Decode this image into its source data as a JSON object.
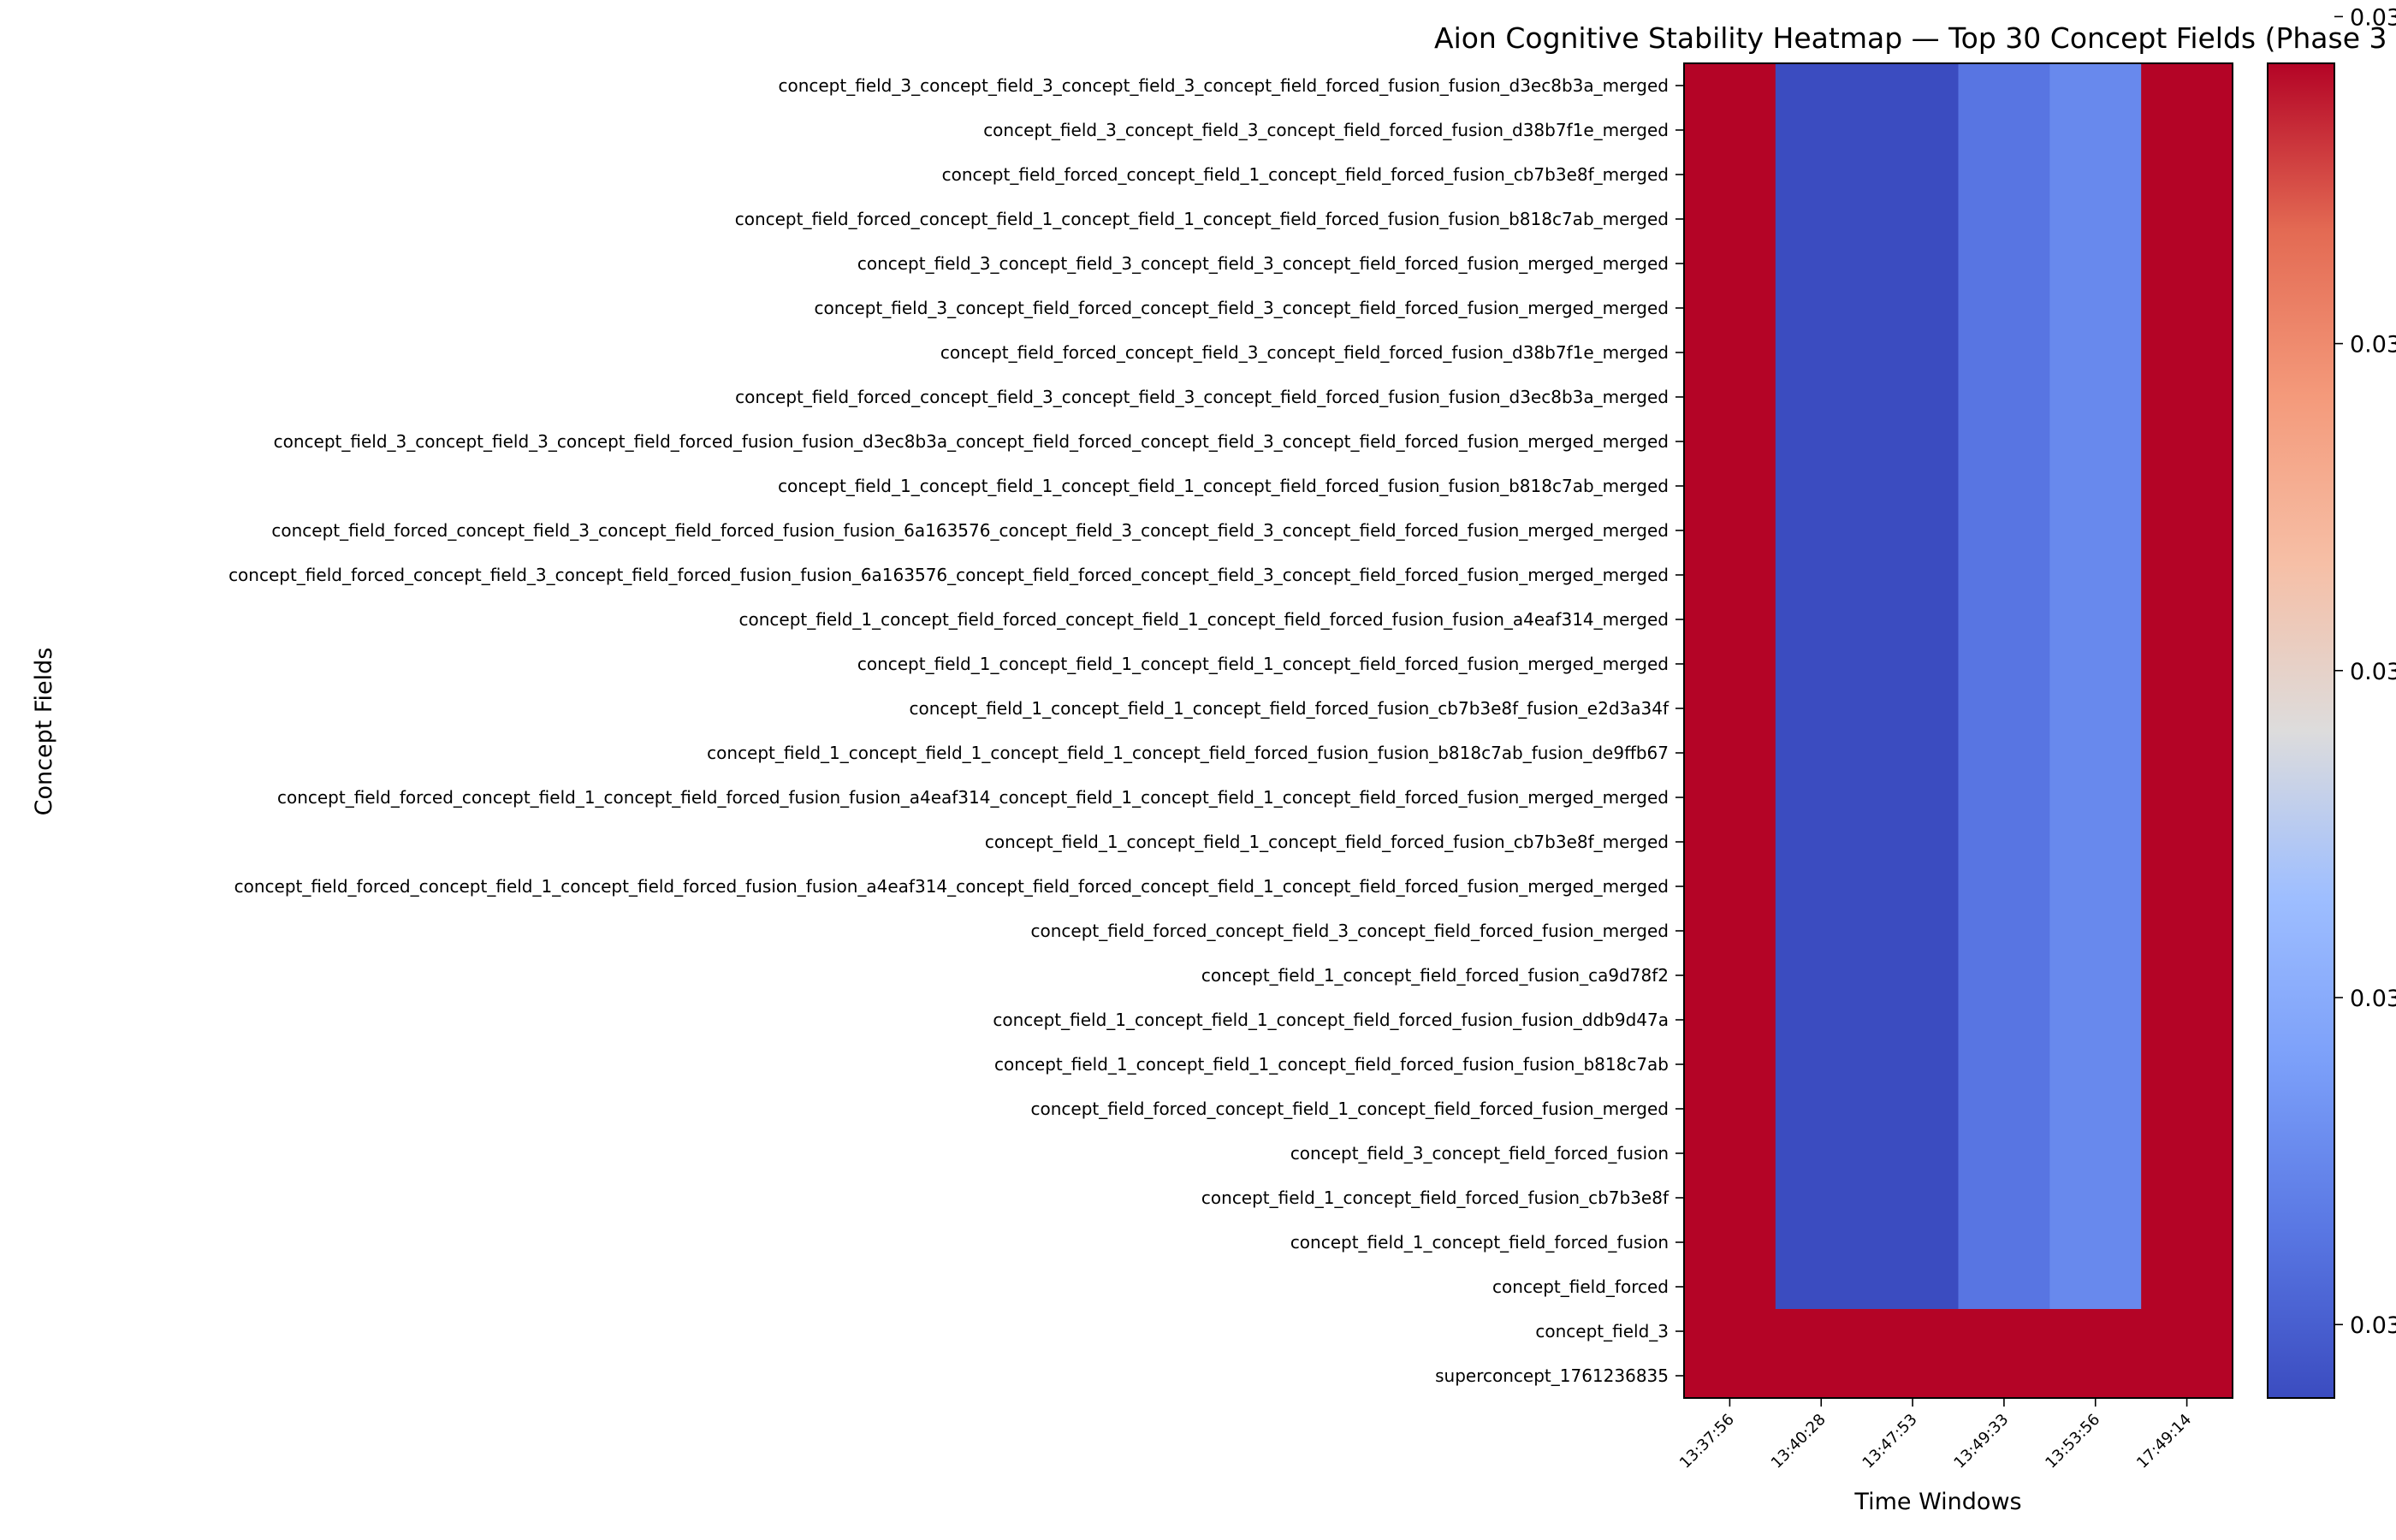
{
  "chart_data": {
    "type": "heatmap",
    "title": "Aion Cognitive Stability Heatmap — Top 30 Concept Fields (Phase 3",
    "xlabel": "Time Windows",
    "ylabel": "Concept Fields",
    "x": [
      "13:37:56",
      "13:40:28",
      "13:47:53",
      "13:49:33",
      "13:53:56",
      "17:49:14"
    ],
    "y": [
      "concept_field_3_concept_field_3_concept_field_3_concept_field_forced_fusion_fusion_d3ec8b3a_merged",
      "concept_field_3_concept_field_3_concept_field_forced_fusion_d38b7f1e_merged",
      "concept_field_forced_concept_field_1_concept_field_forced_fusion_cb7b3e8f_merged",
      "concept_field_forced_concept_field_1_concept_field_1_concept_field_forced_fusion_fusion_b818c7ab_merged",
      "concept_field_3_concept_field_3_concept_field_3_concept_field_forced_fusion_merged_merged",
      "concept_field_3_concept_field_forced_concept_field_3_concept_field_forced_fusion_merged_merged",
      "concept_field_forced_concept_field_3_concept_field_forced_fusion_d38b7f1e_merged",
      "concept_field_forced_concept_field_3_concept_field_3_concept_field_forced_fusion_fusion_d3ec8b3a_merged",
      "concept_field_3_concept_field_3_concept_field_forced_fusion_fusion_d3ec8b3a_concept_field_forced_concept_field_3_concept_field_forced_fusion_merged_merged",
      "concept_field_1_concept_field_1_concept_field_1_concept_field_forced_fusion_fusion_b818c7ab_merged",
      "concept_field_forced_concept_field_3_concept_field_forced_fusion_fusion_6a163576_concept_field_3_concept_field_3_concept_field_forced_fusion_merged_merged",
      "concept_field_forced_concept_field_3_concept_field_forced_fusion_fusion_6a163576_concept_field_forced_concept_field_3_concept_field_forced_fusion_merged_merged",
      "concept_field_1_concept_field_forced_concept_field_1_concept_field_forced_fusion_fusion_a4eaf314_merged",
      "concept_field_1_concept_field_1_concept_field_1_concept_field_forced_fusion_merged_merged",
      "concept_field_1_concept_field_1_concept_field_forced_fusion_cb7b3e8f_fusion_e2d3a34f",
      "concept_field_1_concept_field_1_concept_field_1_concept_field_forced_fusion_fusion_b818c7ab_fusion_de9ffb67",
      "concept_field_forced_concept_field_1_concept_field_forced_fusion_fusion_a4eaf314_concept_field_1_concept_field_1_concept_field_forced_fusion_merged_merged",
      "concept_field_1_concept_field_1_concept_field_forced_fusion_cb7b3e8f_merged",
      "concept_field_forced_concept_field_1_concept_field_forced_fusion_fusion_a4eaf314_concept_field_forced_concept_field_1_concept_field_forced_fusion_merged_merged",
      "concept_field_forced_concept_field_3_concept_field_forced_fusion_merged",
      "concept_field_1_concept_field_forced_fusion_ca9d78f2",
      "concept_field_1_concept_field_1_concept_field_forced_fusion_fusion_ddb9d47a",
      "concept_field_1_concept_field_1_concept_field_forced_fusion_fusion_b818c7ab",
      "concept_field_forced_concept_field_1_concept_field_forced_fusion_merged",
      "concept_field_3_concept_field_forced_fusion",
      "concept_field_1_concept_field_forced_fusion_cb7b3e8f",
      "concept_field_1_concept_field_forced_fusion",
      "concept_field_forced",
      "concept_field_3",
      "superconcept_1761236835"
    ],
    "value_scale": "normalized 0-1 position on colorbar (coolwarm colormap)",
    "colormap": "coolwarm",
    "colorbar_tick_labels": [
      "0.03",
      "0.03",
      "0.03",
      "0.03",
      "0.03"
    ],
    "colorbar_tick_values": [
      0.055,
      0.3,
      0.545,
      0.79,
      1.035
    ],
    "rows_pattern_values": {
      "standard": [
        1.0,
        0.0,
        0.0,
        0.12,
        0.18,
        1.0
      ],
      "last_two": [
        1.0,
        1.0,
        1.0,
        1.0,
        1.0,
        1.0
      ]
    },
    "values": [
      [
        1.0,
        0.0,
        0.0,
        0.12,
        0.18,
        1.0
      ],
      [
        1.0,
        0.0,
        0.0,
        0.12,
        0.18,
        1.0
      ],
      [
        1.0,
        0.0,
        0.0,
        0.12,
        0.18,
        1.0
      ],
      [
        1.0,
        0.0,
        0.0,
        0.12,
        0.18,
        1.0
      ],
      [
        1.0,
        0.0,
        0.0,
        0.12,
        0.18,
        1.0
      ],
      [
        1.0,
        0.0,
        0.0,
        0.12,
        0.18,
        1.0
      ],
      [
        1.0,
        0.0,
        0.0,
        0.12,
        0.18,
        1.0
      ],
      [
        1.0,
        0.0,
        0.0,
        0.12,
        0.18,
        1.0
      ],
      [
        1.0,
        0.0,
        0.0,
        0.12,
        0.18,
        1.0
      ],
      [
        1.0,
        0.0,
        0.0,
        0.12,
        0.18,
        1.0
      ],
      [
        1.0,
        0.0,
        0.0,
        0.12,
        0.18,
        1.0
      ],
      [
        1.0,
        0.0,
        0.0,
        0.12,
        0.18,
        1.0
      ],
      [
        1.0,
        0.0,
        0.0,
        0.12,
        0.18,
        1.0
      ],
      [
        1.0,
        0.0,
        0.0,
        0.12,
        0.18,
        1.0
      ],
      [
        1.0,
        0.0,
        0.0,
        0.12,
        0.18,
        1.0
      ],
      [
        1.0,
        0.0,
        0.0,
        0.12,
        0.18,
        1.0
      ],
      [
        1.0,
        0.0,
        0.0,
        0.12,
        0.18,
        1.0
      ],
      [
        1.0,
        0.0,
        0.0,
        0.12,
        0.18,
        1.0
      ],
      [
        1.0,
        0.0,
        0.0,
        0.12,
        0.18,
        1.0
      ],
      [
        1.0,
        0.0,
        0.0,
        0.12,
        0.18,
        1.0
      ],
      [
        1.0,
        0.0,
        0.0,
        0.12,
        0.18,
        1.0
      ],
      [
        1.0,
        0.0,
        0.0,
        0.12,
        0.18,
        1.0
      ],
      [
        1.0,
        0.0,
        0.0,
        0.12,
        0.18,
        1.0
      ],
      [
        1.0,
        0.0,
        0.0,
        0.12,
        0.18,
        1.0
      ],
      [
        1.0,
        0.0,
        0.0,
        0.12,
        0.18,
        1.0
      ],
      [
        1.0,
        0.0,
        0.0,
        0.12,
        0.18,
        1.0
      ],
      [
        1.0,
        0.0,
        0.0,
        0.12,
        0.18,
        1.0
      ],
      [
        1.0,
        0.0,
        0.0,
        0.12,
        0.18,
        1.0
      ],
      [
        1.0,
        1.0,
        1.0,
        1.0,
        1.0,
        1.0
      ],
      [
        1.0,
        1.0,
        1.0,
        1.0,
        1.0,
        1.0
      ]
    ],
    "grid": false,
    "colors": {
      "high": "#b40426",
      "low": "#3b4cc0",
      "mid_low": "#5977e3",
      "low_plus": "#6788ee"
    }
  }
}
